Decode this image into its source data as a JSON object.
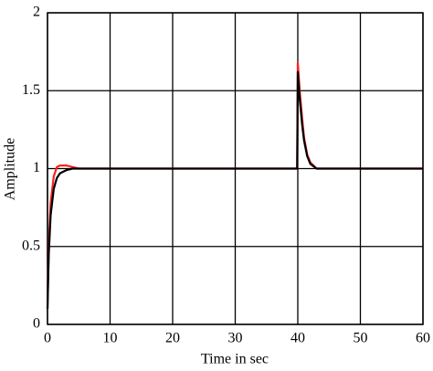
{
  "chart_data": {
    "type": "line",
    "xlabel": "Time in sec",
    "ylabel": "Amplitude",
    "x": [
      0,
      0.2,
      0.5,
      1,
      1.5,
      2,
      3,
      4,
      5,
      10,
      20,
      30,
      39.9,
      40,
      40.3,
      40.7,
      41,
      41.5,
      42,
      43,
      45,
      50,
      60
    ],
    "series": [
      {
        "color": "#ff2020",
        "values": [
          0.1,
          0.5,
          0.78,
          0.95,
          1.01,
          1.02,
          1.02,
          1.01,
          1,
          1,
          1,
          1,
          1,
          1.68,
          1.5,
          1.32,
          1.2,
          1.09,
          1.04,
          1,
          1,
          1,
          1
        ]
      },
      {
        "color": "#000000",
        "values": [
          0.1,
          0.45,
          0.7,
          0.87,
          0.94,
          0.97,
          0.99,
          1,
          1,
          1,
          1,
          1,
          1,
          1.62,
          1.45,
          1.28,
          1.18,
          1.08,
          1.03,
          1,
          1,
          1,
          1
        ]
      }
    ],
    "xlim": [
      0,
      60
    ],
    "xticks": [
      0,
      10,
      20,
      30,
      40,
      50,
      60
    ],
    "ylim": [
      0,
      2
    ],
    "yticks": [
      0,
      0.5,
      1,
      1.5,
      2
    ],
    "grid": true
  }
}
